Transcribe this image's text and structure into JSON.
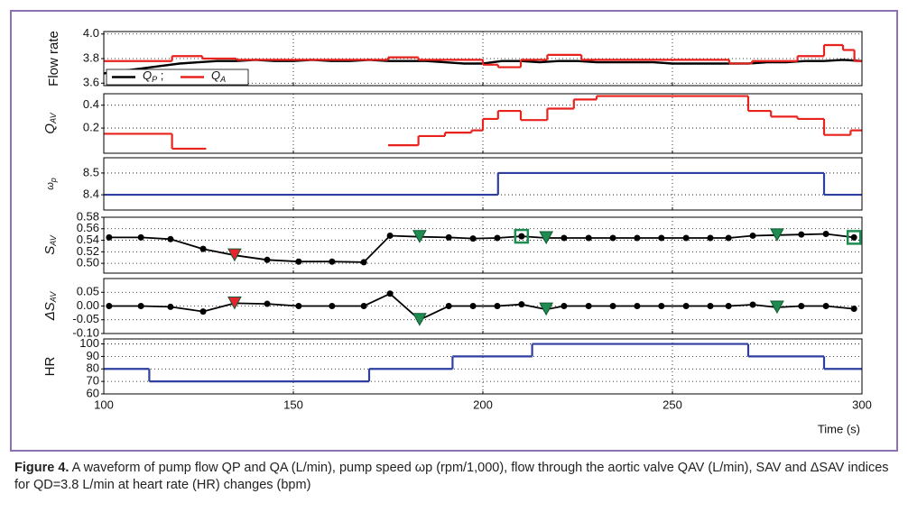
{
  "chart_data": [
    {
      "type": "line",
      "ylabel": "Flow rate",
      "xlim": [
        100,
        300
      ],
      "xticks": [
        100,
        150,
        200,
        250,
        300
      ],
      "ylim": [
        3.58,
        4.02
      ],
      "yticks": [
        3.6,
        3.8,
        {
          "value": 4.0,
          "label": "4.0"
        }
      ],
      "grid": true,
      "legend": "lower left",
      "series": [
        {
          "name": "QP ;",
          "color": "#000000",
          "drawstyle": "default",
          "x": [
            100,
            105,
            110,
            115,
            120,
            125,
            130,
            135,
            140,
            145,
            150,
            155,
            160,
            165,
            170,
            175,
            180,
            185,
            190,
            195,
            200,
            205,
            210,
            215,
            220,
            225,
            230,
            235,
            240,
            245,
            250,
            255,
            260,
            265,
            270,
            275,
            280,
            285,
            290,
            295,
            300
          ],
          "values": [
            3.68,
            3.7,
            3.72,
            3.74,
            3.76,
            3.77,
            3.78,
            3.78,
            3.79,
            3.78,
            3.78,
            3.79,
            3.78,
            3.78,
            3.79,
            3.78,
            3.78,
            3.78,
            3.77,
            3.76,
            3.76,
            3.78,
            3.78,
            3.77,
            3.78,
            3.78,
            3.77,
            3.77,
            3.77,
            3.77,
            3.76,
            3.76,
            3.76,
            3.76,
            3.76,
            3.77,
            3.77,
            3.78,
            3.78,
            3.79,
            3.78
          ]
        },
        {
          "name": "QA",
          "color": "#e8231e",
          "drawstyle": "steps-post",
          "x": [
            100,
            118,
            126,
            135,
            175,
            183,
            200,
            204,
            210,
            217,
            226,
            265,
            271,
            283,
            290,
            295,
            298
          ],
          "values": [
            3.78,
            3.82,
            3.8,
            3.79,
            3.81,
            3.79,
            3.75,
            3.73,
            3.79,
            3.83,
            3.79,
            3.76,
            3.78,
            3.82,
            3.91,
            3.87,
            3.78
          ]
        }
      ]
    },
    {
      "type": "line",
      "ylabel": "QAV",
      "ylabel_subscript": true,
      "xlim": [
        100,
        300
      ],
      "xticks": [
        100,
        150,
        200,
        250,
        300
      ],
      "ylim": [
        -0.02,
        0.5
      ],
      "yticks": [
        0.2,
        0.4
      ],
      "grid": true,
      "series": [
        {
          "color": "#e8231e",
          "drawstyle": "steps-post",
          "x": [
            100,
            118,
            127,
            175,
            183,
            190,
            197,
            200,
            204,
            210,
            217,
            224,
            230,
            270,
            276,
            283,
            290,
            297
          ],
          "values": [
            0.15,
            0.02,
            null,
            0.05,
            0.13,
            0.16,
            0.18,
            0.28,
            0.35,
            0.27,
            0.37,
            0.45,
            0.48,
            0.35,
            0.3,
            0.28,
            0.14,
            0.18
          ]
        }
      ]
    },
    {
      "type": "line",
      "ylabel": "ωp",
      "ylabel_subscript": true,
      "xlim": [
        100,
        300
      ],
      "xticks": [
        100,
        150,
        200,
        250,
        300
      ],
      "ylim": [
        8.33,
        8.57
      ],
      "yticks": [
        8.4,
        8.5
      ],
      "grid": true,
      "series": [
        {
          "color": "#2e3fa0",
          "drawstyle": "steps-post",
          "x": [
            100,
            204,
            290
          ],
          "values": [
            8.4,
            8.5,
            8.4
          ]
        }
      ]
    },
    {
      "type": "line",
      "ylabel": "SAV",
      "ylabel_subscript": true,
      "xlim": [
        100,
        300
      ],
      "xticks": [
        100,
        150,
        200,
        250,
        300
      ],
      "ylim": [
        0.483,
        0.58
      ],
      "yticks": [
        {
          "value": 0.5,
          "label": "0.50"
        },
        0.52,
        0.54,
        0.56,
        0.58
      ],
      "grid": true,
      "x": [
        101.4,
        109.8,
        117.6,
        126.2,
        134.5,
        143.1,
        151.4,
        160.2,
        168.6,
        175.5,
        183.3,
        191,
        197.4,
        203.8,
        210.2,
        216.7,
        221.4,
        227.9,
        234.3,
        240.7,
        247.1,
        253.6,
        260,
        264.8,
        271.2,
        277.6,
        284,
        290.5,
        297.9
      ],
      "series": [
        {
          "color": "#000000",
          "marker": "o",
          "linestyle": "-",
          "values": [
            0.545,
            0.545,
            0.542,
            0.525,
            0.514,
            0.506,
            0.503,
            0.503,
            0.502,
            0.548,
            0.546,
            0.545,
            0.543,
            0.544,
            0.547,
            0.544,
            0.544,
            0.544,
            0.544,
            0.544,
            0.544,
            0.544,
            0.544,
            0.544,
            0.548,
            0.549,
            0.55,
            0.551,
            0.545
          ]
        },
        {
          "color": "#e8232e",
          "marker": "v",
          "linestyle": "none",
          "values": [
            null,
            null,
            null,
            null,
            0.514,
            null,
            null,
            null,
            null,
            null,
            null,
            null,
            null,
            null,
            null,
            null,
            null,
            null,
            null,
            null,
            null,
            null,
            null,
            null,
            null,
            null,
            null,
            null,
            null
          ]
        },
        {
          "color": "#1e8c50",
          "marker": "v",
          "linestyle": "none",
          "values": [
            null,
            null,
            null,
            null,
            null,
            null,
            null,
            null,
            null,
            null,
            0.546,
            null,
            null,
            null,
            null,
            0.544,
            null,
            null,
            null,
            null,
            null,
            null,
            null,
            null,
            null,
            0.549,
            null,
            null,
            null
          ]
        },
        {
          "color": "#1e8c50",
          "marker": "s",
          "linestyle": "none",
          "values": [
            null,
            null,
            null,
            null,
            null,
            null,
            null,
            null,
            null,
            null,
            null,
            null,
            null,
            null,
            0.547,
            null,
            null,
            null,
            null,
            null,
            null,
            null,
            null,
            null,
            null,
            null,
            null,
            null,
            0.545
          ]
        }
      ]
    },
    {
      "type": "line",
      "ylabel": "ΔSAV",
      "ylabel_subscript": true,
      "xlim": [
        100,
        300
      ],
      "xticks": [
        100,
        150,
        200,
        250,
        300
      ],
      "ylim": [
        -0.1,
        0.1
      ],
      "yticks": [
        {
          "value": -0.1,
          "label": "-0.10"
        },
        -0.05,
        {
          "value": 0,
          "label": "0.00"
        },
        0.05
      ],
      "grid": true,
      "x": [
        101.4,
        109.8,
        117.6,
        126.2,
        134.5,
        143.1,
        151.4,
        160.2,
        168.6,
        175.5,
        183.3,
        191,
        197.4,
        203.8,
        210.2,
        216.7,
        221.4,
        227.9,
        234.3,
        240.7,
        247.1,
        253.6,
        260,
        264.8,
        271.2,
        277.6,
        284,
        290.5,
        297.9
      ],
      "series": [
        {
          "color": "#000000",
          "marker": "o",
          "linestyle": "-",
          "values": [
            0,
            0,
            -0.003,
            -0.02,
            0.01,
            0.008,
            0,
            0,
            0,
            0.045,
            -0.05,
            0,
            0,
            0,
            0.006,
            -0.012,
            0,
            0,
            0,
            0,
            0,
            0,
            0,
            0,
            0.005,
            -0.005,
            0,
            0,
            -0.01
          ]
        },
        {
          "color": "#e8232e",
          "marker": "v",
          "linestyle": "none",
          "values": [
            null,
            null,
            null,
            null,
            0.01,
            null,
            null,
            null,
            null,
            null,
            null,
            null,
            null,
            null,
            null,
            null,
            null,
            null,
            null,
            null,
            null,
            null,
            null,
            null,
            null,
            null,
            null,
            null,
            null
          ]
        },
        {
          "color": "#1e8c50",
          "marker": "v",
          "linestyle": "none",
          "values": [
            null,
            null,
            null,
            null,
            null,
            null,
            null,
            null,
            null,
            null,
            -0.05,
            null,
            null,
            null,
            null,
            -0.012,
            null,
            null,
            null,
            null,
            null,
            null,
            null,
            null,
            null,
            -0.005,
            null,
            null,
            null
          ]
        }
      ]
    },
    {
      "type": "line",
      "ylabel": "HR",
      "xlim": [
        100,
        300
      ],
      "xticks": [
        100,
        150,
        200,
        250,
        300
      ],
      "xlabel": "Time (s)",
      "ylim": [
        60,
        104
      ],
      "yticks": [
        60,
        70,
        80,
        90,
        100
      ],
      "grid": true,
      "series": [
        {
          "color": "#2e3fa0",
          "drawstyle": "steps-post",
          "x": [
            100,
            112,
            170,
            192,
            213,
            270,
            290
          ],
          "values": [
            80,
            70,
            80,
            90,
            100,
            90,
            80
          ]
        }
      ]
    }
  ],
  "caption": {
    "label": "Figure 4.",
    "text": "A waveform of pump flow QP and QA (L/min), pump speed ωp (rpm/1,000), flow through the aortic valve QAV (L/min), SAV and ΔSAV indices for QD=3.8 L/min at heart rate (HR) changes (bpm)"
  }
}
